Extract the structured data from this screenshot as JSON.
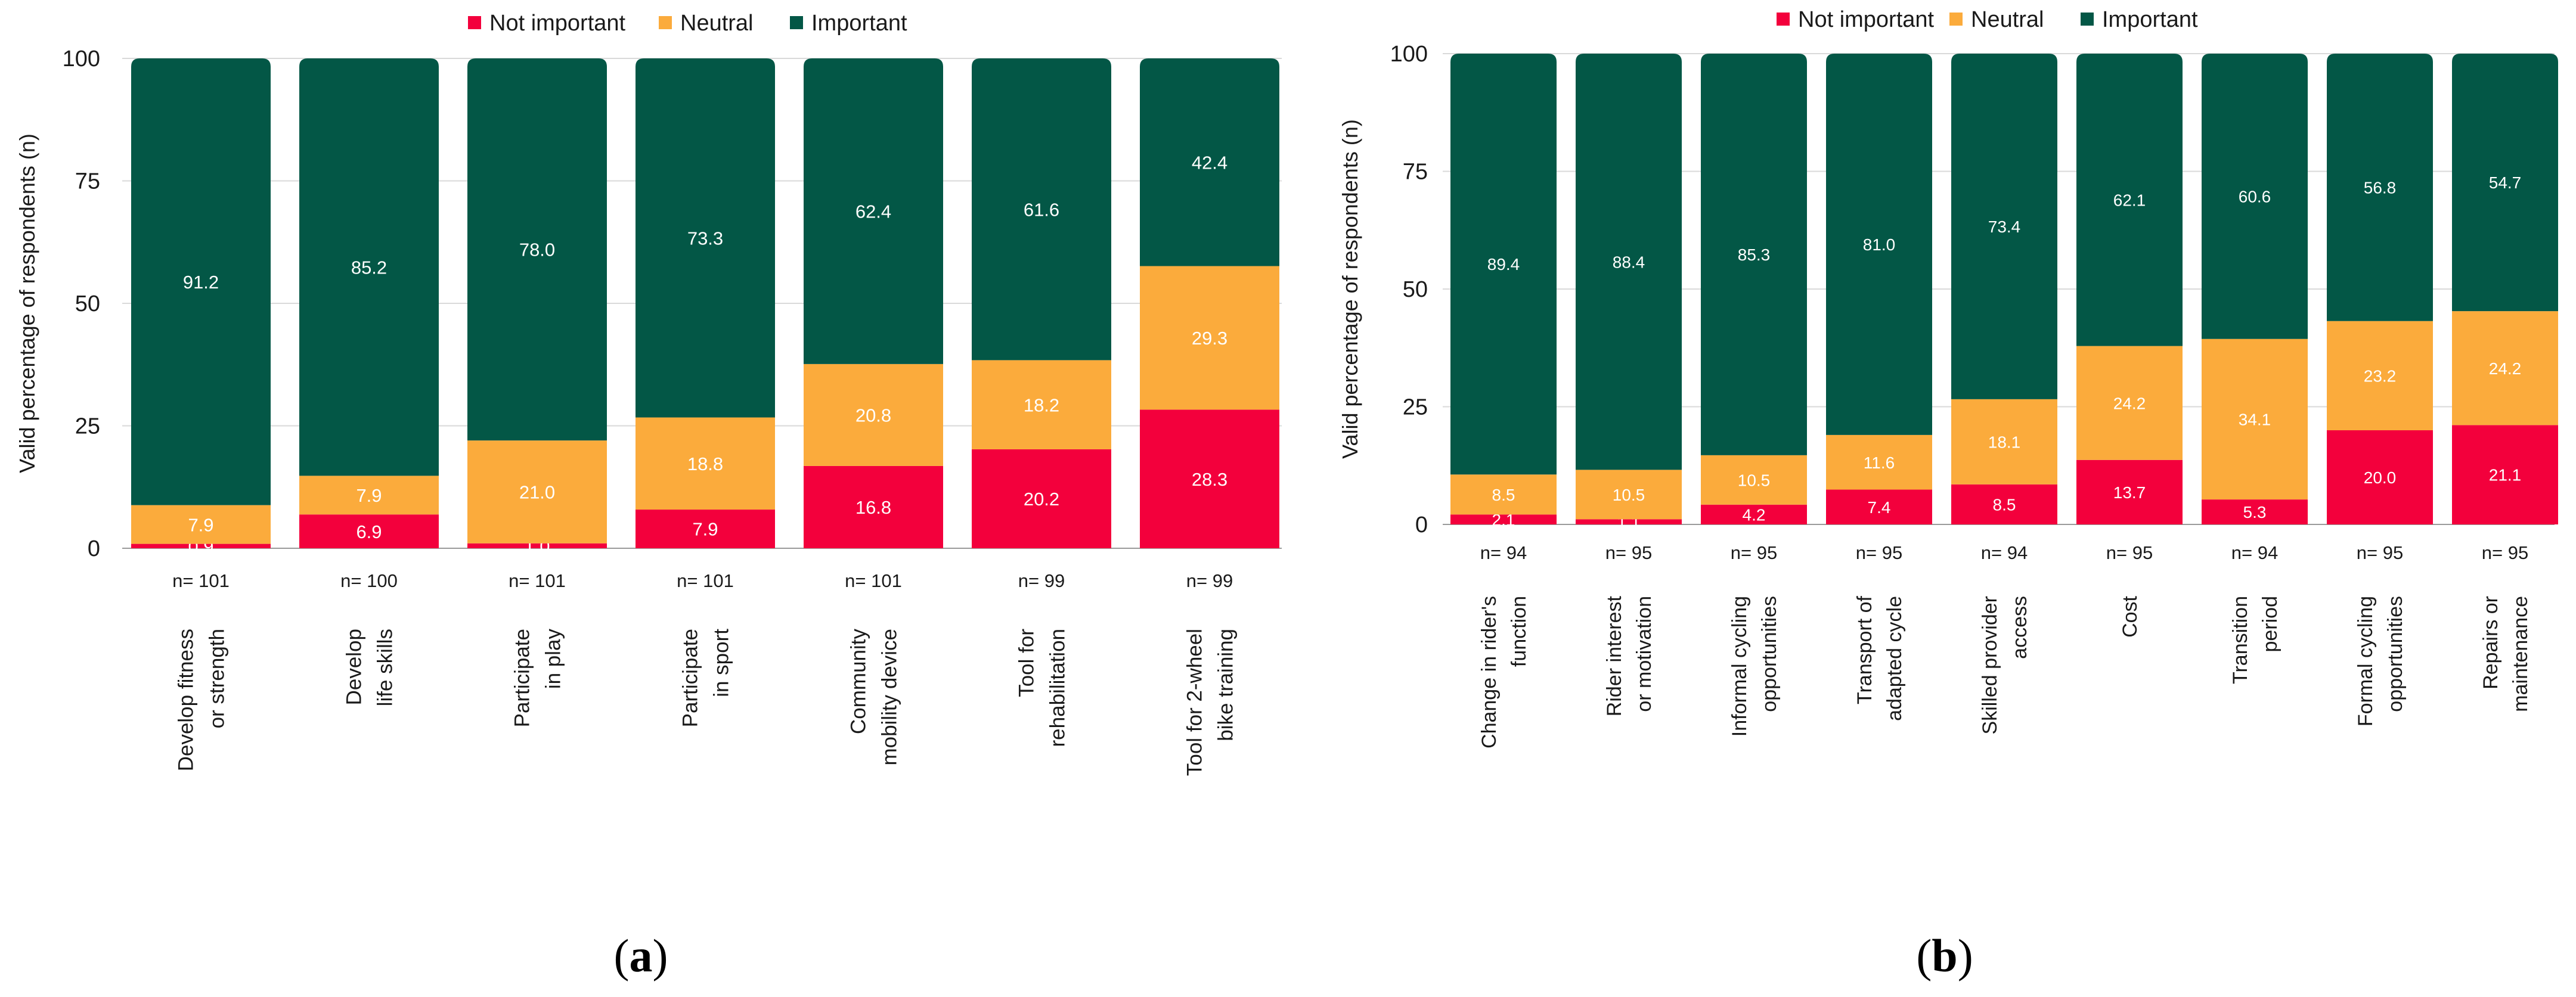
{
  "colors": {
    "not_important": "#f3003c",
    "neutral": "#fbab3c",
    "important": "#035746"
  },
  "chart_data": [
    {
      "type": "bar",
      "stacked": true,
      "panel_label": "a",
      "ylabel": "Valid percentage of respondents (n)",
      "ylim": [
        0,
        100
      ],
      "yticks": [
        0,
        25,
        50,
        75,
        100
      ],
      "legend": [
        "Not important",
        "Neutral",
        "Important"
      ],
      "categories": [
        [
          "Develop fitness",
          "or strength"
        ],
        [
          "Develop",
          "life skills"
        ],
        [
          "Participate",
          "in play"
        ],
        [
          "Participate",
          "in sport"
        ],
        [
          "Community",
          "mobility device"
        ],
        [
          "Tool for",
          "rehabilitation"
        ],
        [
          "Tool for 2-wheel",
          "bike training"
        ]
      ],
      "n_labels": [
        "n= 101",
        "n= 100",
        "n= 101",
        "n= 101",
        "n= 101",
        "n= 99",
        "n= 99"
      ],
      "series": [
        {
          "name": "Not important",
          "values": [
            0.9,
            6.9,
            1.0,
            7.9,
            16.8,
            20.2,
            28.3
          ]
        },
        {
          "name": "Neutral",
          "values": [
            7.9,
            7.9,
            21.0,
            18.8,
            20.8,
            18.2,
            29.3
          ]
        },
        {
          "name": "Important",
          "values": [
            91.2,
            85.2,
            78.0,
            73.3,
            62.4,
            61.6,
            42.4
          ]
        }
      ]
    },
    {
      "type": "bar",
      "stacked": true,
      "panel_label": "b",
      "ylabel": "Valid percentage of respondents (n)",
      "ylim": [
        0,
        100
      ],
      "yticks": [
        0,
        25,
        50,
        75,
        100
      ],
      "legend": [
        "Not important",
        "Neutral",
        "Important"
      ],
      "categories": [
        [
          "Change in rider's",
          "function"
        ],
        [
          "Rider interest",
          "or motivation"
        ],
        [
          "Informal cycling",
          "opportunities"
        ],
        [
          "Transport of",
          "adapted cycle"
        ],
        [
          "Skilled provider",
          "access"
        ],
        [
          "Cost"
        ],
        [
          "Transition",
          "period"
        ],
        [
          "Formal cycling",
          "opportunities"
        ],
        [
          "Repairs or",
          "maintenance"
        ]
      ],
      "n_labels": [
        "n= 94",
        "n= 95",
        "n= 95",
        "n= 95",
        "n= 94",
        "n= 95",
        "n= 94",
        "n= 95",
        "n= 95"
      ],
      "series": [
        {
          "name": "Not important",
          "values": [
            2.1,
            1.1,
            4.2,
            7.4,
            8.5,
            13.7,
            5.3,
            20.0,
            21.1
          ]
        },
        {
          "name": "Neutral",
          "values": [
            8.5,
            10.5,
            10.5,
            11.6,
            18.1,
            24.2,
            34.1,
            23.2,
            24.2
          ]
        },
        {
          "name": "Important",
          "values": [
            89.4,
            88.4,
            85.3,
            81.0,
            73.4,
            62.1,
            60.6,
            56.8,
            54.7
          ]
        }
      ]
    }
  ]
}
